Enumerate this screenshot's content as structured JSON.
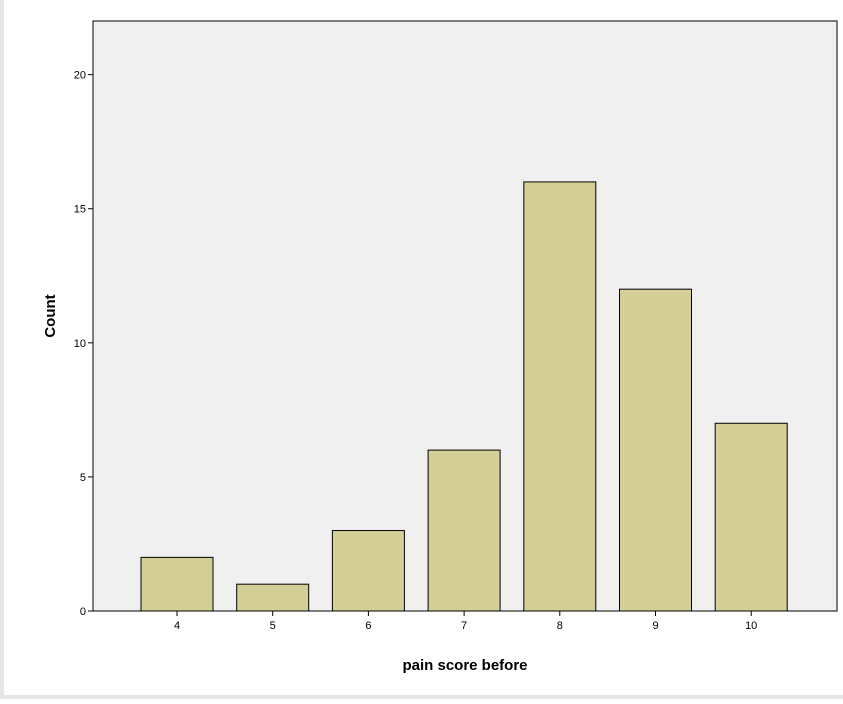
{
  "chart_data": {
    "type": "bar",
    "categories": [
      "4",
      "5",
      "6",
      "7",
      "8",
      "9",
      "10"
    ],
    "values": [
      2,
      1,
      3,
      6,
      16,
      12,
      7
    ],
    "xlabel": "pain score before",
    "ylabel": "Count",
    "ylim": [
      0,
      22
    ],
    "yticks": [
      0,
      5,
      10,
      15,
      20
    ],
    "grid": false,
    "colors": {
      "bar_fill": "#d4cf96",
      "bar_stroke": "#000000",
      "plot_background": "#f0f0f0",
      "page_background": "#ffffff"
    }
  }
}
